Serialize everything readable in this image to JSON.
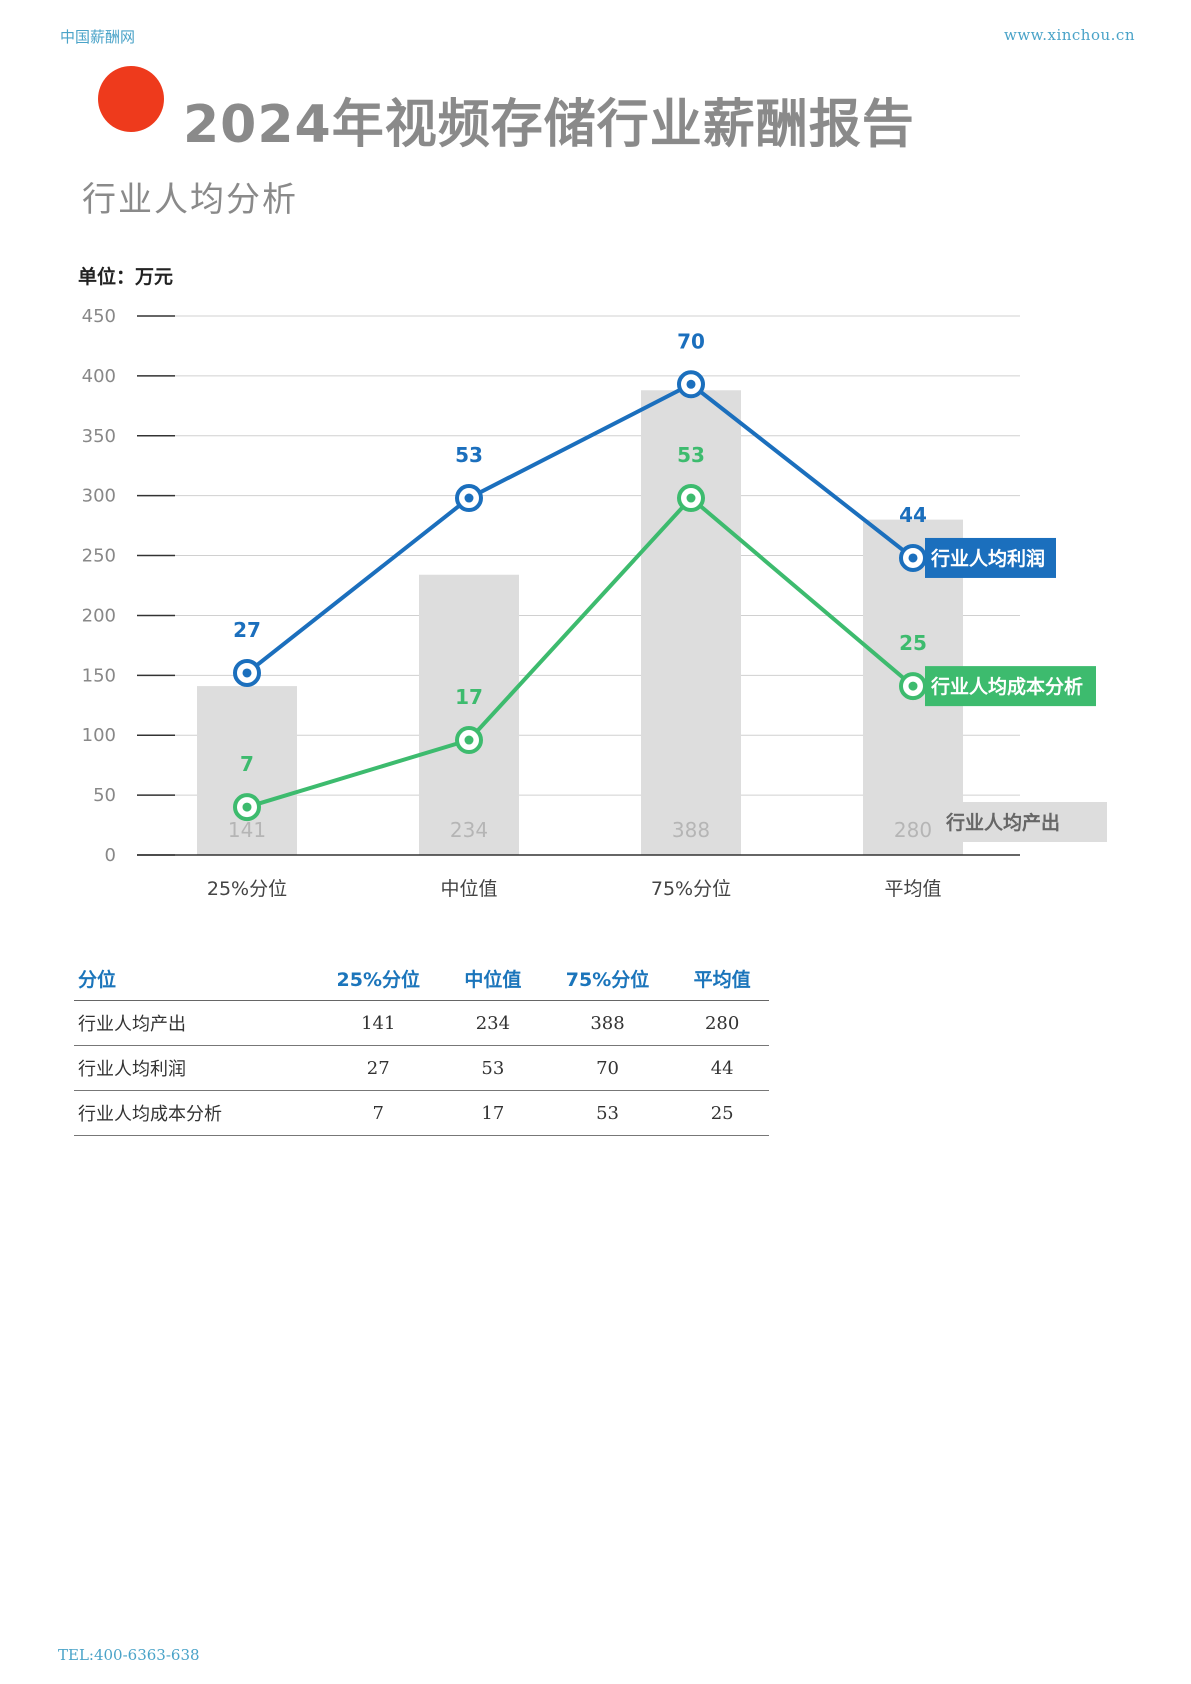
{
  "header": {
    "site_name": "中国薪酬网",
    "site_url": "www.xinchou.cn",
    "title": "2024年视频存储行业薪酬报告",
    "subtitle": "行业人均分析",
    "unit_label": "单位：万元"
  },
  "colors": {
    "accent_red": "#ee3a1c",
    "profit_blue": "#1b6fbd",
    "cost_green": "#3dbb6e",
    "bar_gray": "#dddddd"
  },
  "chart_data": {
    "type": "bar",
    "categories": [
      "25%分位",
      "中位值",
      "75%分位",
      "平均值"
    ],
    "ylim": [
      0,
      450
    ],
    "yticks": [
      0,
      50,
      100,
      150,
      200,
      250,
      300,
      350,
      400,
      450
    ],
    "grid": true,
    "series": [
      {
        "name": "行业人均产出",
        "type": "bar",
        "values": [
          141,
          234,
          388,
          280
        ]
      },
      {
        "name": "行业人均利润",
        "type": "line",
        "values": [
          27,
          53,
          70,
          44
        ],
        "plot_values": [
          152,
          298,
          393,
          248
        ]
      },
      {
        "name": "行业人均成本分析",
        "type": "line",
        "values": [
          7,
          17,
          53,
          25
        ],
        "plot_values": [
          40,
          96,
          298,
          141
        ]
      }
    ]
  },
  "table": {
    "headers": [
      "分位",
      "25%分位",
      "中位值",
      "75%分位",
      "平均值"
    ],
    "rows": [
      [
        "行业人均产出",
        "141",
        "234",
        "388",
        "280"
      ],
      [
        "行业人均利润",
        "27",
        "53",
        "70",
        "44"
      ],
      [
        "行业人均成本分析",
        "7",
        "17",
        "53",
        "25"
      ]
    ]
  },
  "footer": {
    "tel": "TEL:400-6363-638"
  }
}
